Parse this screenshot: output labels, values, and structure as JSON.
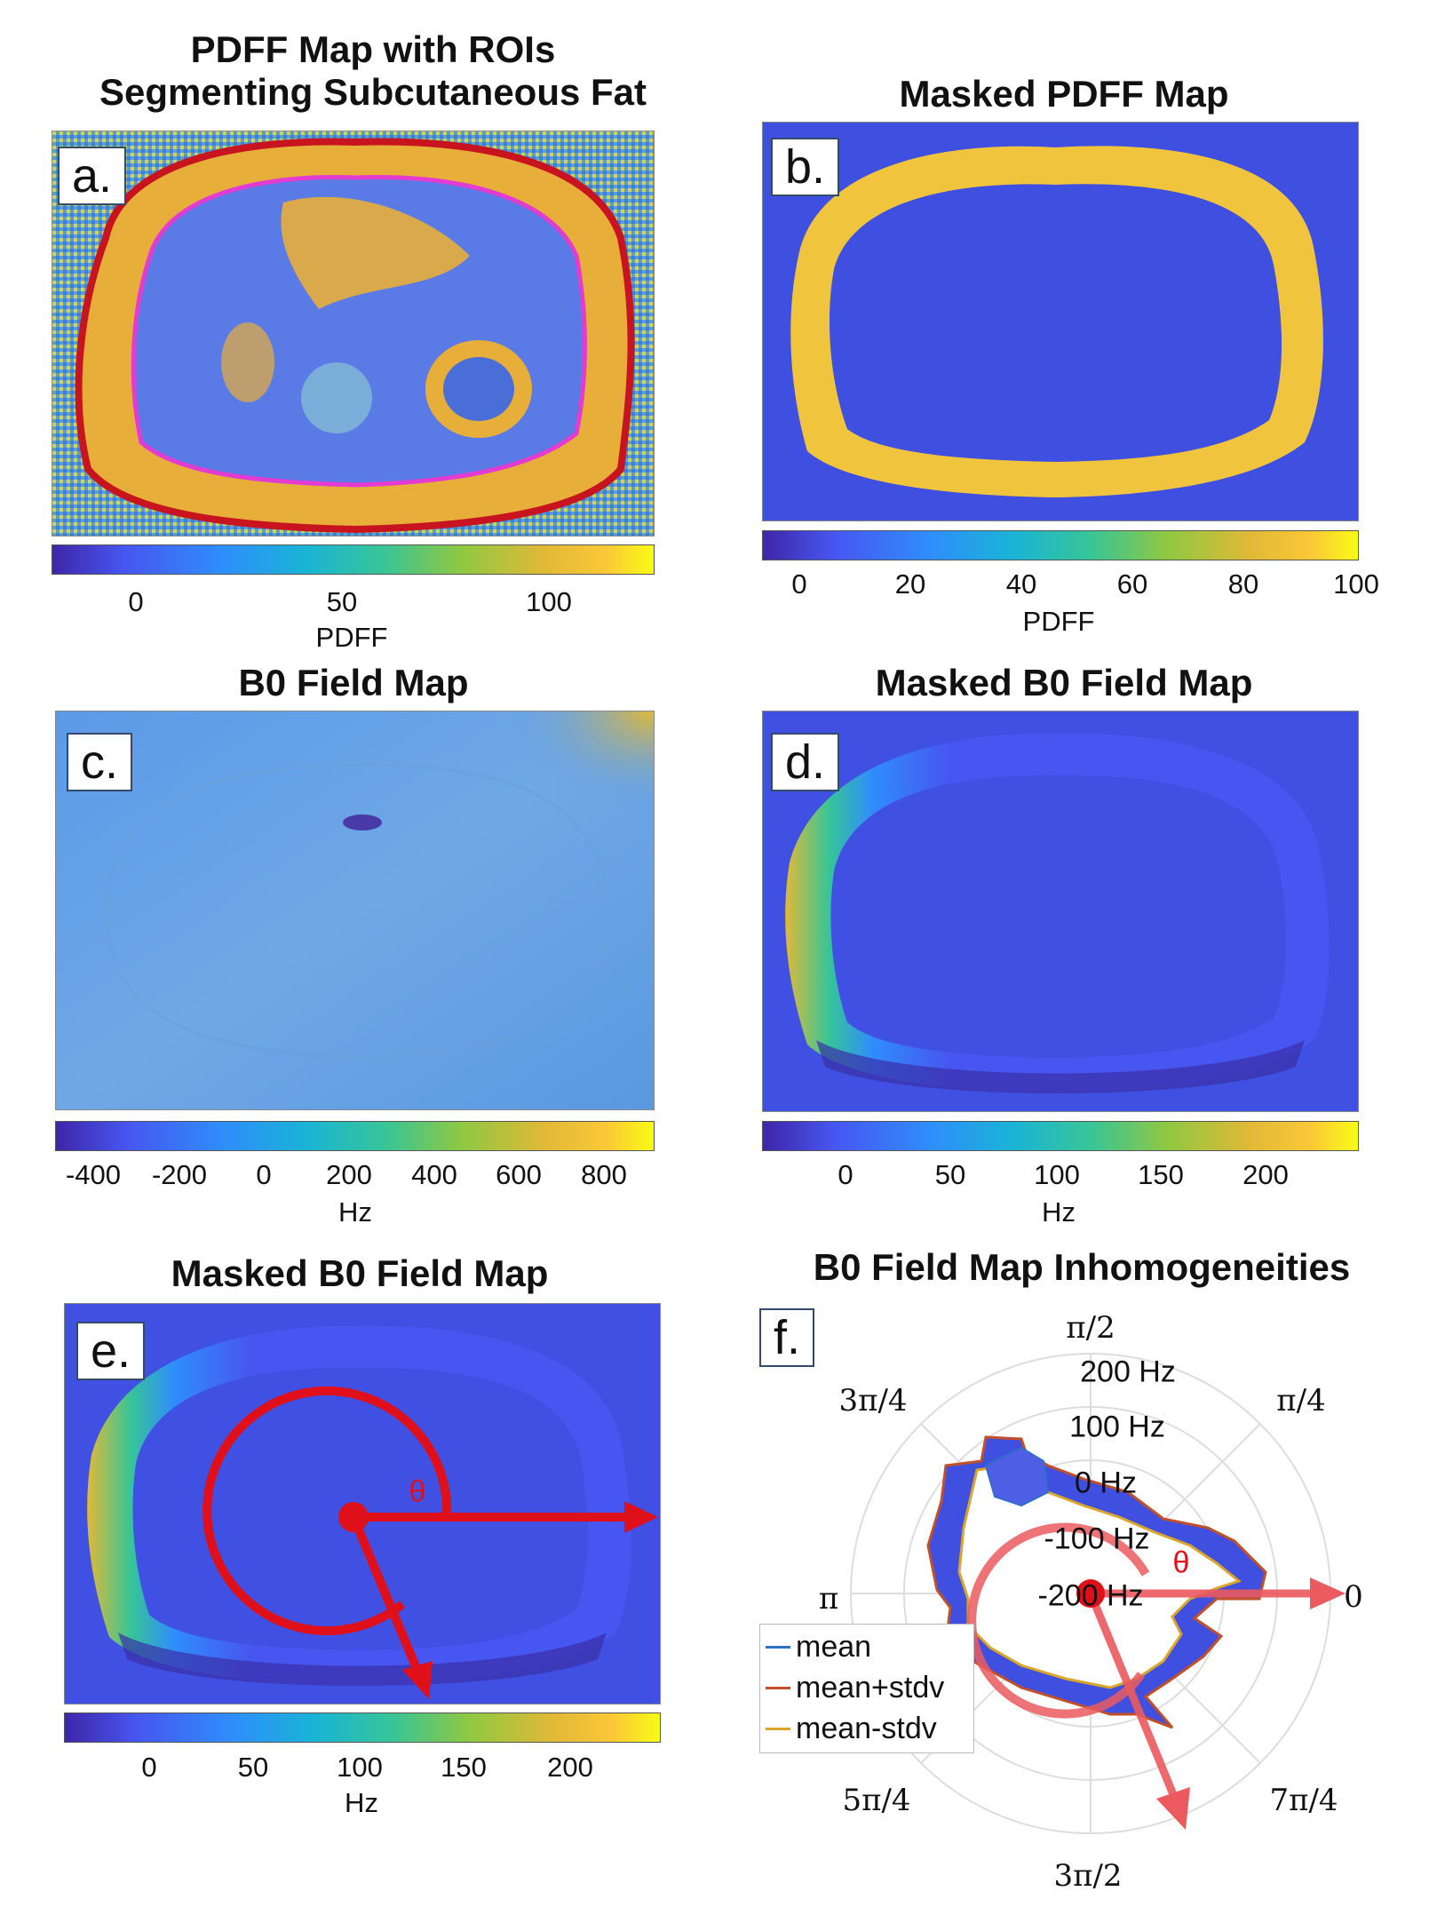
{
  "panels": {
    "a": {
      "label": "a.",
      "title_line1": "PDFF Map with ROIs",
      "title_line2": "Segmenting Subcutaneous Fat",
      "ticks": [
        "0",
        "50",
        "100"
      ],
      "unit": "PDFF"
    },
    "b": {
      "label": "b.",
      "title": "Masked PDFF Map",
      "ticks": [
        "0",
        "20",
        "40",
        "60",
        "80",
        "100"
      ],
      "unit": "PDFF"
    },
    "c": {
      "label": "c.",
      "title": "B0 Field Map",
      "ticks": [
        "-400",
        "-200",
        "0",
        "200",
        "400",
        "600",
        "800"
      ],
      "unit": "Hz"
    },
    "d": {
      "label": "d.",
      "title": "Masked B0 Field Map",
      "ticks": [
        "0",
        "50",
        "100",
        "150",
        "200"
      ],
      "unit": "Hz"
    },
    "e": {
      "label": "e.",
      "title": "Masked B0 Field Map",
      "ticks": [
        "0",
        "50",
        "100",
        "150",
        "200"
      ],
      "unit": "Hz",
      "theta": "θ"
    },
    "f": {
      "label": "f.",
      "title": "B0 Field Map Inhomogeneities",
      "theta": "θ",
      "angle_labels": [
        "π/2",
        "π/4",
        "0",
        "7π/4",
        "3π/2",
        "5π/4",
        "π",
        "3π/4"
      ],
      "radial_labels": [
        "200 Hz",
        "100 Hz",
        "0 Hz",
        "-100 Hz",
        "-200 Hz"
      ],
      "legend": [
        "mean",
        "mean+stdv",
        "mean-stdv"
      ]
    }
  },
  "colors": {
    "roi_outer": "#c8141e",
    "roi_inner": "#e23cd0",
    "mask_bg": "#3f4fe0",
    "fat": "#f0c43c",
    "legend_mean": "#2f6fc8",
    "legend_plus": "#c0502a",
    "legend_minus": "#d9a52a",
    "arrow": "#e0101a"
  }
}
